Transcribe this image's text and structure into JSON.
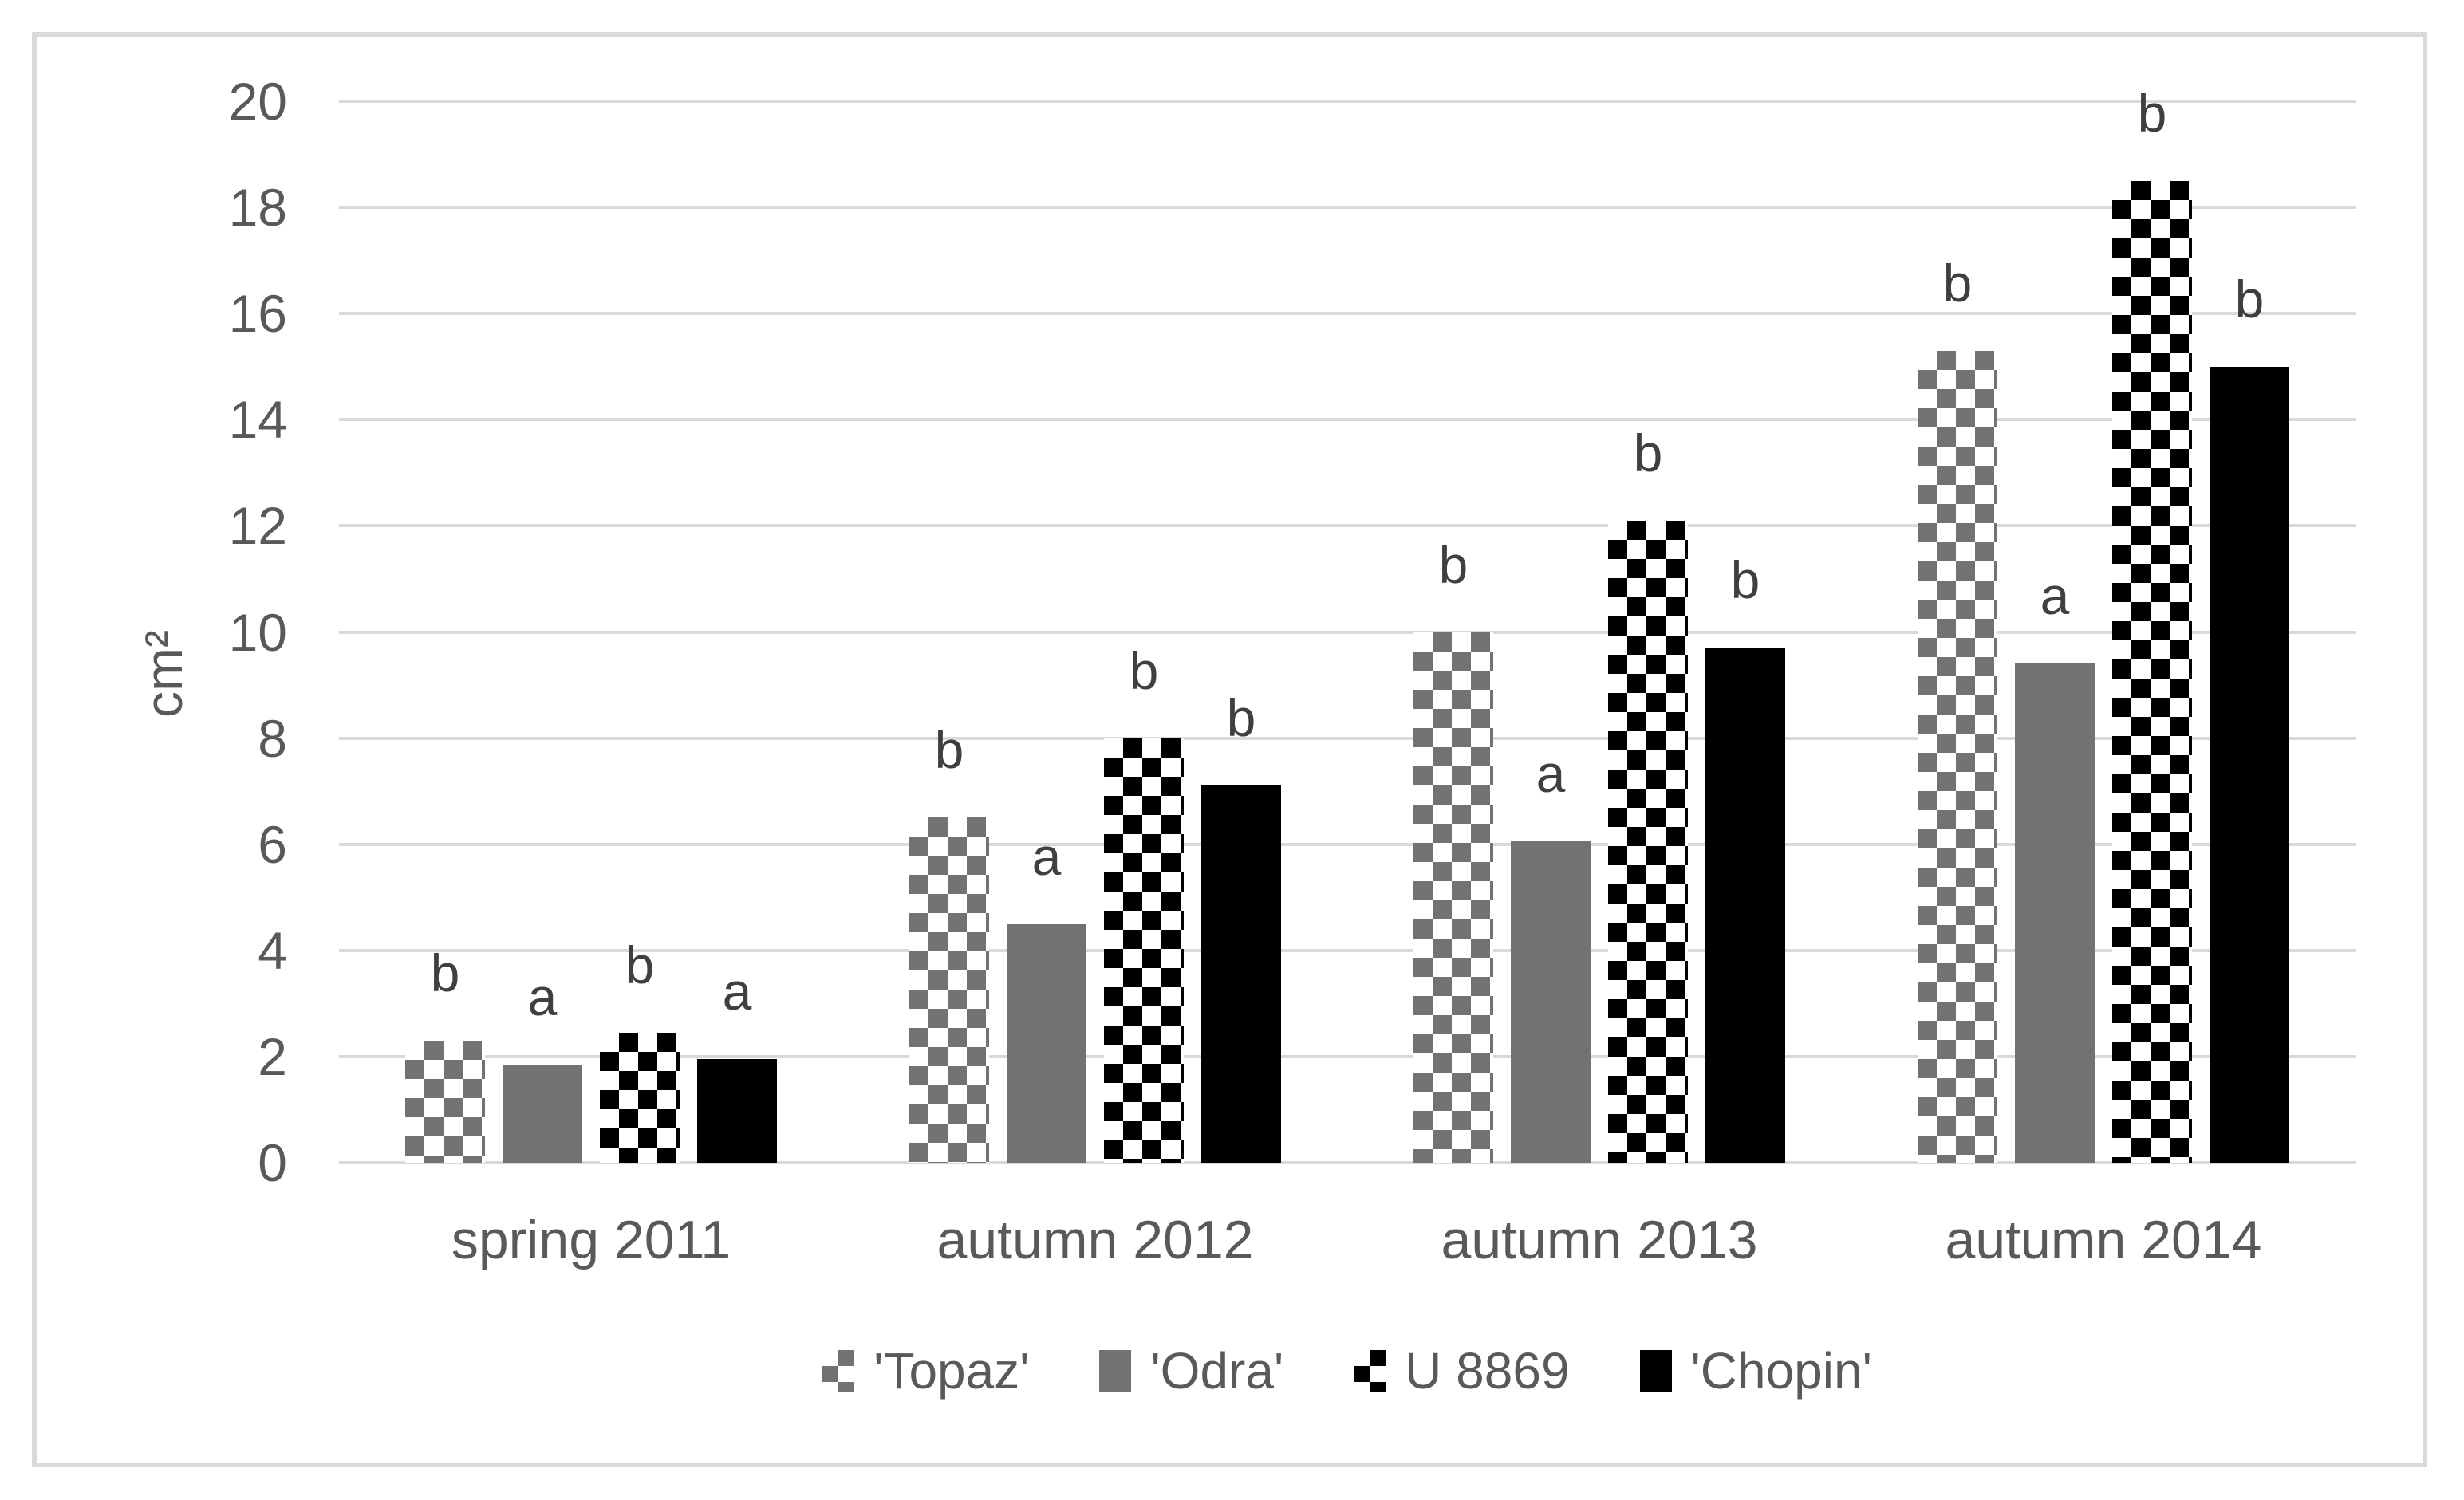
{
  "colors": {
    "gray": "#747171",
    "black": "#000000",
    "gridline": "#d9d9d9",
    "axis_text": "#595959",
    "letter_text": "#3f3f3f",
    "figure_border": "#d9d9d9"
  },
  "chart_data": {
    "type": "bar",
    "title": "",
    "ylabel": "cm²",
    "xlabel": "",
    "ylim": [
      0,
      20
    ],
    "ytick_step": 2,
    "yticks": [
      "0",
      "2",
      "4",
      "6",
      "8",
      "10",
      "12",
      "14",
      "16",
      "18",
      "20"
    ],
    "grid": true,
    "legend_position": "bottom",
    "categories": [
      "spring 2011",
      "autumn 2012",
      "autumn 2013",
      "autumn 2014"
    ],
    "series": [
      {
        "name": "'Topaz'",
        "pattern": "checker-gray",
        "values": [
          2.3,
          6.5,
          10.0,
          15.3
        ],
        "letters": [
          "b",
          "b",
          "b",
          "b"
        ]
      },
      {
        "name": "'Odra'",
        "pattern": "solid-gray",
        "values": [
          1.85,
          4.5,
          6.05,
          9.4
        ],
        "letters": [
          "a",
          "a",
          "a",
          "a"
        ]
      },
      {
        "name": "U 8869",
        "pattern": "checker-black",
        "values": [
          2.45,
          8.0,
          12.1,
          18.5
        ],
        "letters": [
          "b",
          "b",
          "b",
          "b"
        ]
      },
      {
        "name": "'Chopin'",
        "pattern": "solid-black",
        "values": [
          1.95,
          7.1,
          9.7,
          15.0
        ],
        "letters": [
          "a",
          "b",
          "b",
          "b"
        ]
      }
    ]
  }
}
